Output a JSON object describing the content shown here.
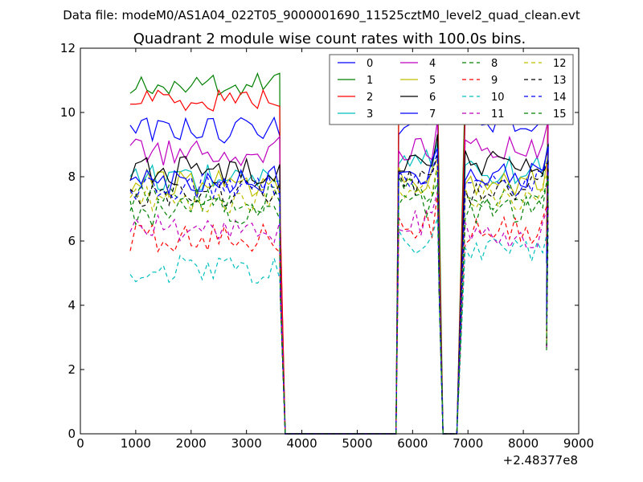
{
  "figure": {
    "suptitle": "Data file: modeM0/AS1A04_022T05_9000001690_11525cztM0_level2_quad_clean.evt"
  },
  "chart_data": {
    "type": "line",
    "title": "Quadrant 2 module wise count rates with 100.0s bins.",
    "xlabel": "",
    "ylabel": "",
    "x_offset_label": "+2.48377e8",
    "xlim": [
      0,
      9000
    ],
    "ylim": [
      0,
      12
    ],
    "xticks": [
      0,
      1000,
      2000,
      3000,
      4000,
      5000,
      6000,
      7000,
      8000,
      9000
    ],
    "yticks": [
      0,
      2,
      4,
      6,
      8,
      10,
      12
    ],
    "xtick_labels": [
      "0",
      "1000",
      "2000",
      "3000",
      "4000",
      "5000",
      "6000",
      "7000",
      "8000",
      "9000"
    ],
    "ytick_labels": [
      "0",
      "2",
      "4",
      "6",
      "8",
      "10",
      "12"
    ],
    "legend_position": "top-right",
    "legend_columns": 4,
    "segments": [
      {
        "x_start": 900,
        "x_end": 3650,
        "step": 100
      },
      {
        "x_start": 5750,
        "x_end": 6450,
        "step": 100
      },
      {
        "x_start": 6950,
        "x_end": 8450,
        "step": 100
      }
    ],
    "zero_x": [
      3700,
      5700,
      6550,
      6800
    ],
    "drop_x": [
      3610,
      6480,
      8420
    ],
    "series": [
      {
        "name": "0",
        "color": "#0000ff",
        "style": "solid",
        "levels": [
          9.5,
          9.6,
          9.7
        ]
      },
      {
        "name": "1",
        "color": "#008000",
        "style": "solid",
        "levels": [
          10.9,
          10.5,
          10.8
        ]
      },
      {
        "name": "2",
        "color": "#ff0000",
        "style": "solid",
        "levels": [
          10.4,
          10.3,
          10.4
        ]
      },
      {
        "name": "3",
        "color": "#00bfbf",
        "style": "solid",
        "levels": [
          8.0,
          8.4,
          8.2
        ]
      },
      {
        "name": "4",
        "color": "#bf00bf",
        "style": "solid",
        "levels": [
          8.8,
          8.9,
          8.8
        ]
      },
      {
        "name": "5",
        "color": "#bfbf00",
        "style": "solid",
        "levels": [
          7.8,
          7.9,
          7.8
        ]
      },
      {
        "name": "6",
        "color": "#000000",
        "style": "solid",
        "levels": [
          8.2,
          8.6,
          8.4
        ]
      },
      {
        "name": "7",
        "color": "#0000ff",
        "style": "solid",
        "levels": [
          7.9,
          8.1,
          8.0
        ]
      },
      {
        "name": "8",
        "color": "#008000",
        "style": "dashed",
        "levels": [
          7.3,
          7.6,
          7.4
        ]
      },
      {
        "name": "9",
        "color": "#ff0000",
        "style": "dashed",
        "levels": [
          6.1,
          6.5,
          6.3
        ]
      },
      {
        "name": "10",
        "color": "#00bfbf",
        "style": "dashed",
        "levels": [
          5.1,
          5.9,
          5.7
        ]
      },
      {
        "name": "11",
        "color": "#bf00bf",
        "style": "dashed",
        "levels": [
          6.4,
          6.6,
          6.2
        ]
      },
      {
        "name": "12",
        "color": "#bfbf00",
        "style": "dashed",
        "levels": [
          7.3,
          7.5,
          7.4
        ]
      },
      {
        "name": "13",
        "color": "#000000",
        "style": "dashed",
        "levels": [
          7.5,
          7.8,
          7.6
        ]
      },
      {
        "name": "14",
        "color": "#0000ff",
        "style": "dashed",
        "levels": [
          7.7,
          8.0,
          7.8
        ]
      },
      {
        "name": "15",
        "color": "#008000",
        "style": "dashed",
        "levels": [
          6.9,
          7.2,
          7.0
        ]
      }
    ]
  }
}
